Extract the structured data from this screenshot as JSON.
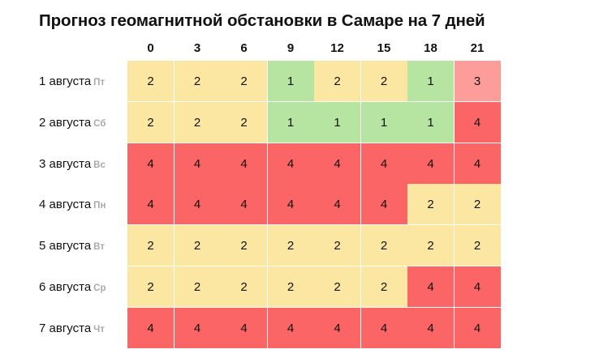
{
  "title": "Прогноз геомагнитной обстановки в Самаре на 7 дней",
  "hours": [
    "0",
    "3",
    "6",
    "9",
    "12",
    "15",
    "18",
    "21"
  ],
  "colors": {
    "1": "#b6e4a1",
    "2": "#fbe7a1",
    "3": "#fc9d9a",
    "4": "#fb6565"
  },
  "rows": [
    {
      "date": "1 августа",
      "dow": "Пт",
      "values": [
        "2",
        "2",
        "2",
        "1",
        "2",
        "2",
        "1",
        "3"
      ]
    },
    {
      "date": "2 августа",
      "dow": "Сб",
      "values": [
        "2",
        "2",
        "2",
        "1",
        "1",
        "1",
        "1",
        "4"
      ]
    },
    {
      "date": "3 августа",
      "dow": "Вс",
      "values": [
        "4",
        "4",
        "4",
        "4",
        "4",
        "4",
        "4",
        "4"
      ]
    },
    {
      "date": "4 августа",
      "dow": "Пн",
      "values": [
        "4",
        "4",
        "4",
        "4",
        "4",
        "4",
        "2",
        "2"
      ]
    },
    {
      "date": "5 августа",
      "dow": "Вт",
      "values": [
        "2",
        "2",
        "2",
        "2",
        "2",
        "2",
        "2",
        "2"
      ]
    },
    {
      "date": "6 августа",
      "dow": "Ср",
      "values": [
        "2",
        "2",
        "2",
        "2",
        "2",
        "2",
        "4",
        "4"
      ]
    },
    {
      "date": "7 августа",
      "dow": "Чт",
      "values": [
        "4",
        "4",
        "4",
        "4",
        "4",
        "4",
        "4",
        "4"
      ]
    }
  ]
}
